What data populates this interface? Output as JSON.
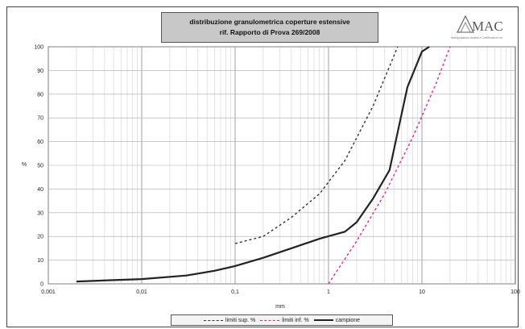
{
  "chart_data": {
    "type": "line",
    "title_line1": "distribuzione granulometrica coperture estensive",
    "title_line2": "rif. Rapporto di Prova 269/2008",
    "xlabel": "mm",
    "ylabel": "%",
    "xscale": "log",
    "xlim": [
      0.001,
      100
    ],
    "ylim": [
      0,
      100
    ],
    "x_tick_labels": [
      "0,001",
      "0,01",
      "0,1",
      "1",
      "10",
      "100"
    ],
    "y_tick_labels": [
      "0",
      "10",
      "20",
      "30",
      "40",
      "50",
      "60",
      "70",
      "80",
      "90",
      "100"
    ],
    "grid": true,
    "legend_position": "bottom",
    "series": [
      {
        "name": "limiti sup. %",
        "style": "dashed",
        "color": "#333333",
        "x": [
          0.1,
          0.2,
          0.4,
          0.8,
          1.5,
          3,
          5.5
        ],
        "y": [
          17,
          20,
          28,
          38,
          52,
          75,
          100
        ]
      },
      {
        "name": "limiti inf. %",
        "style": "dashed",
        "color": "#ff1a8c",
        "x": [
          1.0,
          2.0,
          4.0,
          8.0,
          14,
          20
        ],
        "y": [
          0,
          18,
          38,
          62,
          84,
          100
        ]
      },
      {
        "name": "campione",
        "style": "solid",
        "color": "#222222",
        "x": [
          0.002,
          0.01,
          0.03,
          0.06,
          0.1,
          0.2,
          0.4,
          0.8,
          1.5,
          2,
          3,
          4.5,
          5.5,
          7,
          10,
          12
        ],
        "y": [
          1,
          2,
          3.5,
          5.5,
          7.5,
          11,
          15,
          19,
          22,
          26,
          36,
          48,
          64,
          83,
          98,
          100
        ]
      }
    ]
  },
  "logo": {
    "text": "MAC",
    "subtitle": "Manipolazione Analisi e Certificazioni srl"
  }
}
